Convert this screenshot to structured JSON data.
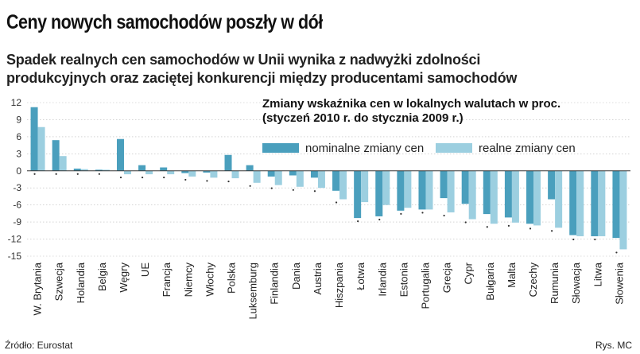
{
  "header": {
    "title": "Ceny nowych samochodów poszły w dół",
    "subtitle_line1": "Spadek realnych cen samochodów w Unii wynika z nadwyżki zdolności",
    "subtitle_line2": "produkcyjnych oraz zaciętej konkurencji między producentami samochodów"
  },
  "footer": {
    "source": "Źródło: Eurostat",
    "credit": "Rys. MC"
  },
  "colors": {
    "nominal": "#4a9fbd",
    "real": "#9ccfe0",
    "zero_line": "#333333",
    "grid": "#bbbbbb"
  },
  "chart_data": {
    "type": "bar",
    "title": "Zmiany wskaźnika cen w lokalnych walutach w proc.",
    "subtitle": "(styczeń 2010 r. do stycznia 2009 r.)",
    "categories": [
      "W. Brytania",
      "Szwecja",
      "Holandia",
      "Belgia",
      "Węgry",
      "UE",
      "Francja",
      "Niemcy",
      "Włochy",
      "Polska",
      "Luksemburg",
      "Finlandia",
      "Dania",
      "Austria",
      "Hiszpania",
      "Łotwa",
      "Irlandia",
      "Estonia",
      "Portugalia",
      "Grecja",
      "Cypr",
      "Bułgaria",
      "Malta",
      "Czechy",
      "Rumunia",
      "Słowacja",
      "Litwa",
      "Słowenia"
    ],
    "series": [
      {
        "name": "nominalne zmiany cen",
        "values": [
          11.2,
          5.4,
          0.4,
          0.2,
          5.6,
          1.0,
          0.6,
          -0.4,
          -0.3,
          2.8,
          1.0,
          -1.0,
          -0.8,
          -1.2,
          -3.5,
          -8.3,
          -8.0,
          -7.0,
          -6.8,
          -4.8,
          -5.8,
          -7.6,
          -8.2,
          -9.3,
          -5.0,
          -11.3,
          -11.5,
          -11.8
        ]
      },
      {
        "name": "realne zmiany cen",
        "values": [
          7.7,
          2.6,
          0.3,
          0.2,
          -0.6,
          -0.6,
          -0.6,
          -1.0,
          -1.2,
          -1.3,
          -2.1,
          -2.5,
          -2.8,
          -3.0,
          -5.0,
          -5.5,
          -6.0,
          -6.5,
          -6.8,
          -7.3,
          -8.5,
          -9.3,
          -9.1,
          -9.6,
          -10.0,
          -11.5,
          -11.5,
          -13.8
        ]
      }
    ],
    "yticks": [
      12,
      9,
      6,
      3,
      0,
      -3,
      -6,
      -9,
      -12,
      -15
    ],
    "ylim": [
      -15,
      12
    ],
    "xlabel": "",
    "ylabel": "",
    "legend": "top-right"
  }
}
